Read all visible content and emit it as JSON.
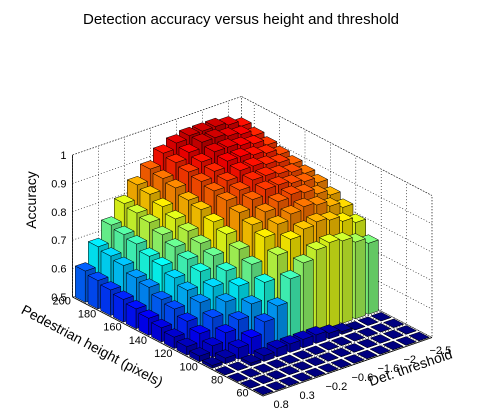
{
  "chart_data": {
    "type": "bar3d",
    "title": "Detection accuracy versus height and threshold",
    "xlabel": "Det. threshold",
    "ylabel": "Pedestrian height (pixels)",
    "zlabel": "Accuracy",
    "zlim": [
      0.5,
      1
    ],
    "zticks": [
      "0.5",
      "0.6",
      "0.7",
      "0.8",
      "0.9",
      "1"
    ],
    "threshold_ticks": [
      "0.8",
      "0.3",
      "−0.2",
      "−0.6",
      "−1.6",
      "−2",
      "−2.5"
    ],
    "height_ticks": [
      "60",
      "80",
      "100",
      "120",
      "140",
      "160",
      "180",
      "200"
    ],
    "grid": true,
    "colormap": "jet",
    "thresholds": [
      0.8,
      0.55,
      0.3,
      0.05,
      -0.2,
      -0.4,
      -0.6,
      -1.1,
      -1.6,
      -1.8,
      -2,
      -2.25,
      -2.5
    ],
    "heights": [
      60,
      70,
      80,
      90,
      100,
      110,
      120,
      130,
      140,
      150,
      160,
      170,
      180,
      190,
      200
    ],
    "accuracy": [
      [
        0.5,
        0.5,
        0.5,
        0.5,
        0.5,
        0.5,
        0.5,
        0.5,
        0.5,
        0.5,
        0.5,
        0.5,
        0.5
      ],
      [
        0.5,
        0.5,
        0.5,
        0.5,
        0.5,
        0.5,
        0.5,
        0.5,
        0.5,
        0.5,
        0.5,
        0.5,
        0.5
      ],
      [
        0.5,
        0.5,
        0.5,
        0.5,
        0.5,
        0.5,
        0.5,
        0.5,
        0.5,
        0.5,
        0.5,
        0.5,
        0.5
      ],
      [
        0.5,
        0.5,
        0.51,
        0.52,
        0.53,
        0.53,
        0.53,
        0.53,
        0.52,
        0.51,
        0.5,
        0.5,
        0.5
      ],
      [
        0.51,
        0.52,
        0.54,
        0.56,
        0.6,
        0.64,
        0.72,
        0.76,
        0.79,
        0.8,
        0.79,
        0.77,
        0.75
      ],
      [
        0.52,
        0.54,
        0.57,
        0.6,
        0.64,
        0.7,
        0.78,
        0.82,
        0.84,
        0.85,
        0.84,
        0.82,
        0.8
      ],
      [
        0.53,
        0.56,
        0.6,
        0.64,
        0.68,
        0.74,
        0.82,
        0.85,
        0.87,
        0.88,
        0.87,
        0.85,
        0.83
      ],
      [
        0.54,
        0.58,
        0.63,
        0.67,
        0.71,
        0.77,
        0.84,
        0.87,
        0.89,
        0.9,
        0.89,
        0.87,
        0.85
      ],
      [
        0.55,
        0.6,
        0.65,
        0.7,
        0.74,
        0.8,
        0.86,
        0.89,
        0.91,
        0.91,
        0.9,
        0.89,
        0.87
      ],
      [
        0.56,
        0.61,
        0.67,
        0.72,
        0.76,
        0.82,
        0.88,
        0.9,
        0.92,
        0.92,
        0.91,
        0.9,
        0.88
      ],
      [
        0.57,
        0.63,
        0.69,
        0.74,
        0.78,
        0.84,
        0.89,
        0.91,
        0.93,
        0.93,
        0.92,
        0.91,
        0.89
      ],
      [
        0.58,
        0.64,
        0.7,
        0.76,
        0.8,
        0.85,
        0.9,
        0.92,
        0.94,
        0.94,
        0.93,
        0.92,
        0.9
      ],
      [
        0.59,
        0.66,
        0.72,
        0.78,
        0.82,
        0.87,
        0.91,
        0.93,
        0.95,
        0.95,
        0.94,
        0.93,
        0.91
      ],
      [
        0.6,
        0.67,
        0.73,
        0.79,
        0.84,
        0.88,
        0.92,
        0.94,
        0.96,
        0.96,
        0.95,
        0.94,
        0.92
      ],
      [
        0.61,
        0.68,
        0.74,
        0.8,
        0.85,
        0.89,
        0.93,
        0.95,
        0.96,
        0.96,
        0.96,
        0.95,
        0.93
      ]
    ]
  }
}
